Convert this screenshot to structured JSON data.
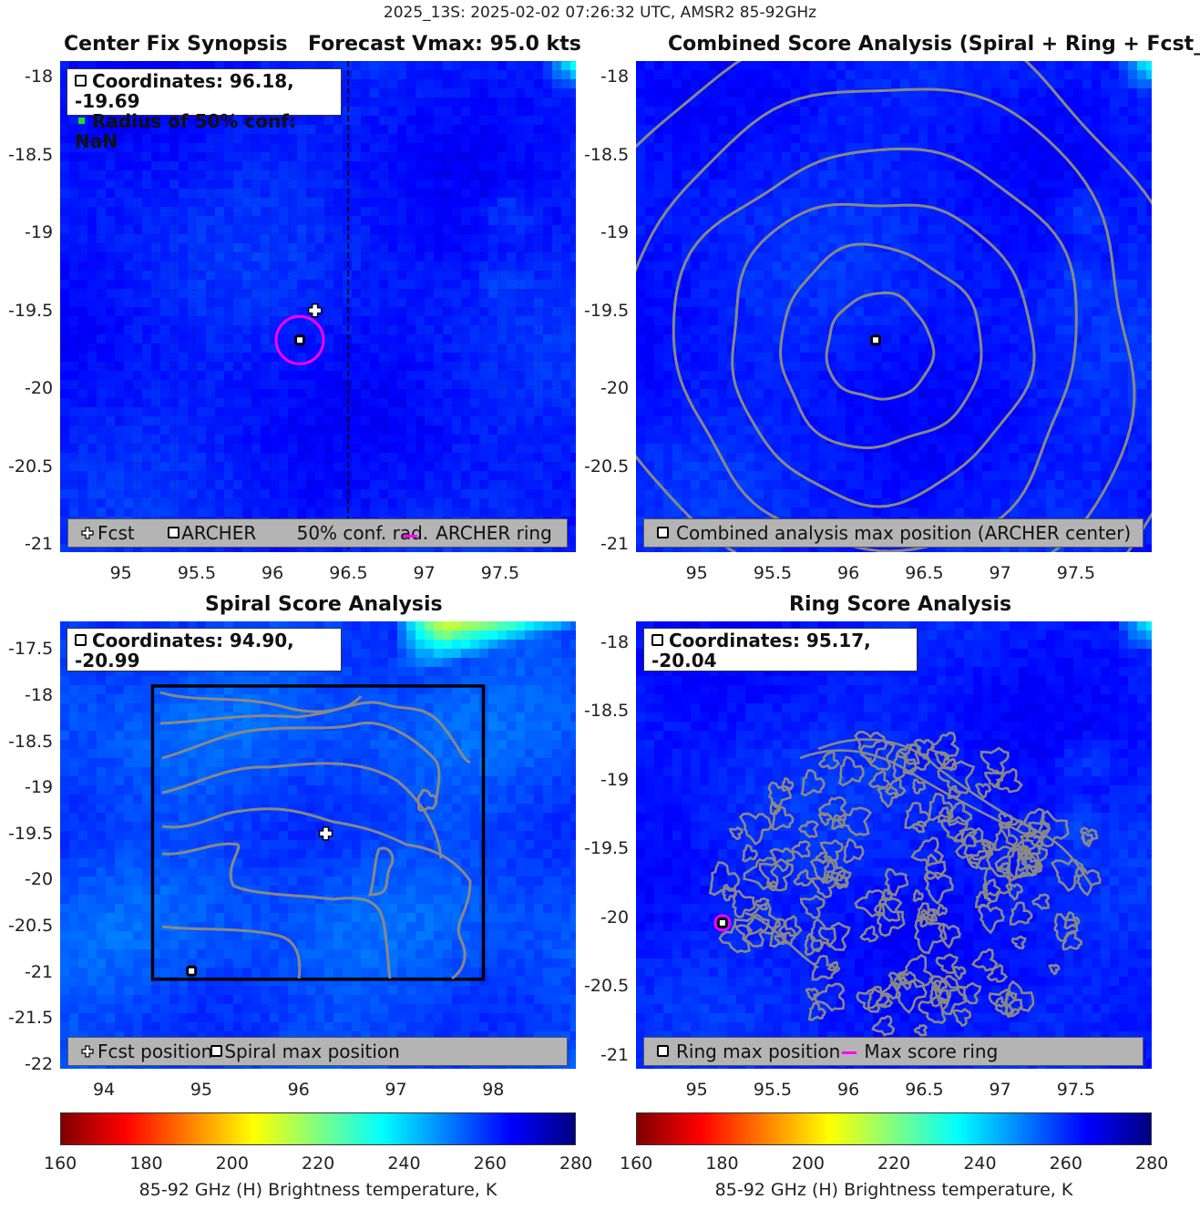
{
  "figure_title": "2025_13S: 2025-02-02 07:26:32 UTC, AMSR2 85-92GHz",
  "colors": {
    "field": "#1f4fe8",
    "contour": "#888888",
    "ring": "#ff00ff",
    "legend_bg": "#b4b4b4"
  },
  "panels": {
    "p1": {
      "title_left": "Center Fix Synopsis",
      "title_right": "Forecast Vmax: 95.0 kts",
      "info_line1": "Coordinates: 96.18, -19.69",
      "info_line2": "Radius of 50% conf: NaN",
      "legend": {
        "fcst": "Fcst",
        "archer": "ARCHER",
        "conf": "50% conf. rad.",
        "ring": "ARCHER ring"
      }
    },
    "p2": {
      "title": "Combined Score Analysis (Spiral + Ring + Fcst_Pe",
      "legend": {
        "max": "Combined analysis max position (ARCHER center)"
      }
    },
    "p3": {
      "title": "Spiral Score Analysis",
      "info_line1": "Coordinates: 94.90, -20.99",
      "legend": {
        "fcst": "Fcst position",
        "spiral": "Spiral max position"
      }
    },
    "p4": {
      "title": "Ring Score Analysis",
      "info_line1": "Coordinates: 95.17, -20.04",
      "legend": {
        "ring_max": "Ring max position",
        "ring": "Max score ring"
      }
    }
  },
  "colorbars": {
    "ticks": [
      "160",
      "180",
      "200",
      "220",
      "240",
      "260",
      "280"
    ],
    "label": "85-92 GHz (H) Brightness temperature, K"
  },
  "chart_data": [
    {
      "type": "heatmap",
      "id": "p1",
      "title": "Center Fix Synopsis",
      "xlim": [
        94.6,
        98.0
      ],
      "ylim": [
        -21.05,
        -17.9
      ],
      "xticks": [
        "95",
        "95.5",
        "96",
        "96.5",
        "97",
        "97.5"
      ],
      "yticks": [
        "-18",
        "-18.5",
        "-19",
        "-19.5",
        "-20",
        "-20.5",
        "-21"
      ],
      "points": [
        {
          "name": "Fcst",
          "x": 96.28,
          "y": -19.5
        },
        {
          "name": "ARCHER",
          "x": 96.18,
          "y": -19.69
        }
      ],
      "ring": {
        "x": 96.18,
        "y": -19.69,
        "r": 0.16
      }
    },
    {
      "type": "heatmap",
      "id": "p2",
      "title": "Combined Score Analysis",
      "xlim": [
        94.6,
        98.0
      ],
      "ylim": [
        -21.05,
        -17.9
      ],
      "xticks": [
        "95",
        "95.5",
        "96",
        "96.5",
        "97",
        "97.5"
      ],
      "yticks": [
        "-18",
        "-18.5",
        "-19",
        "-19.5",
        "-20",
        "-20.5",
        "-21"
      ],
      "points": [
        {
          "name": "Combined max",
          "x": 96.18,
          "y": -19.69
        }
      ]
    },
    {
      "type": "heatmap",
      "id": "p3",
      "title": "Spiral Score Analysis",
      "xlim": [
        93.55,
        98.85
      ],
      "ylim": [
        -22.05,
        -17.2
      ],
      "xticks": [
        "94",
        "95",
        "96",
        "97",
        "98"
      ],
      "yticks": [
        "-17.5",
        "-18",
        "-18.5",
        "-19",
        "-19.5",
        "-20",
        "-20.5",
        "-21",
        "-21.5",
        "-22"
      ],
      "points": [
        {
          "name": "Fcst position",
          "x": 96.28,
          "y": -19.5
        },
        {
          "name": "Spiral max",
          "x": 94.9,
          "y": -20.99
        }
      ],
      "box": {
        "x0": 94.5,
        "x1": 97.9,
        "y0": -21.08,
        "y1": -17.9
      }
    },
    {
      "type": "heatmap",
      "id": "p4",
      "title": "Ring Score Analysis",
      "xlim": [
        94.6,
        98.0
      ],
      "ylim": [
        -21.1,
        -17.85
      ],
      "xticks": [
        "95",
        "95.5",
        "96",
        "96.5",
        "97",
        "97.5"
      ],
      "yticks": [
        "-18",
        "-18.5",
        "-19",
        "-19.5",
        "-20",
        "-20.5",
        "-21"
      ],
      "points": [
        {
          "name": "Ring max",
          "x": 95.17,
          "y": -20.04
        }
      ],
      "ring": {
        "x": 95.17,
        "y": -20.04,
        "r": 0.05
      }
    }
  ]
}
